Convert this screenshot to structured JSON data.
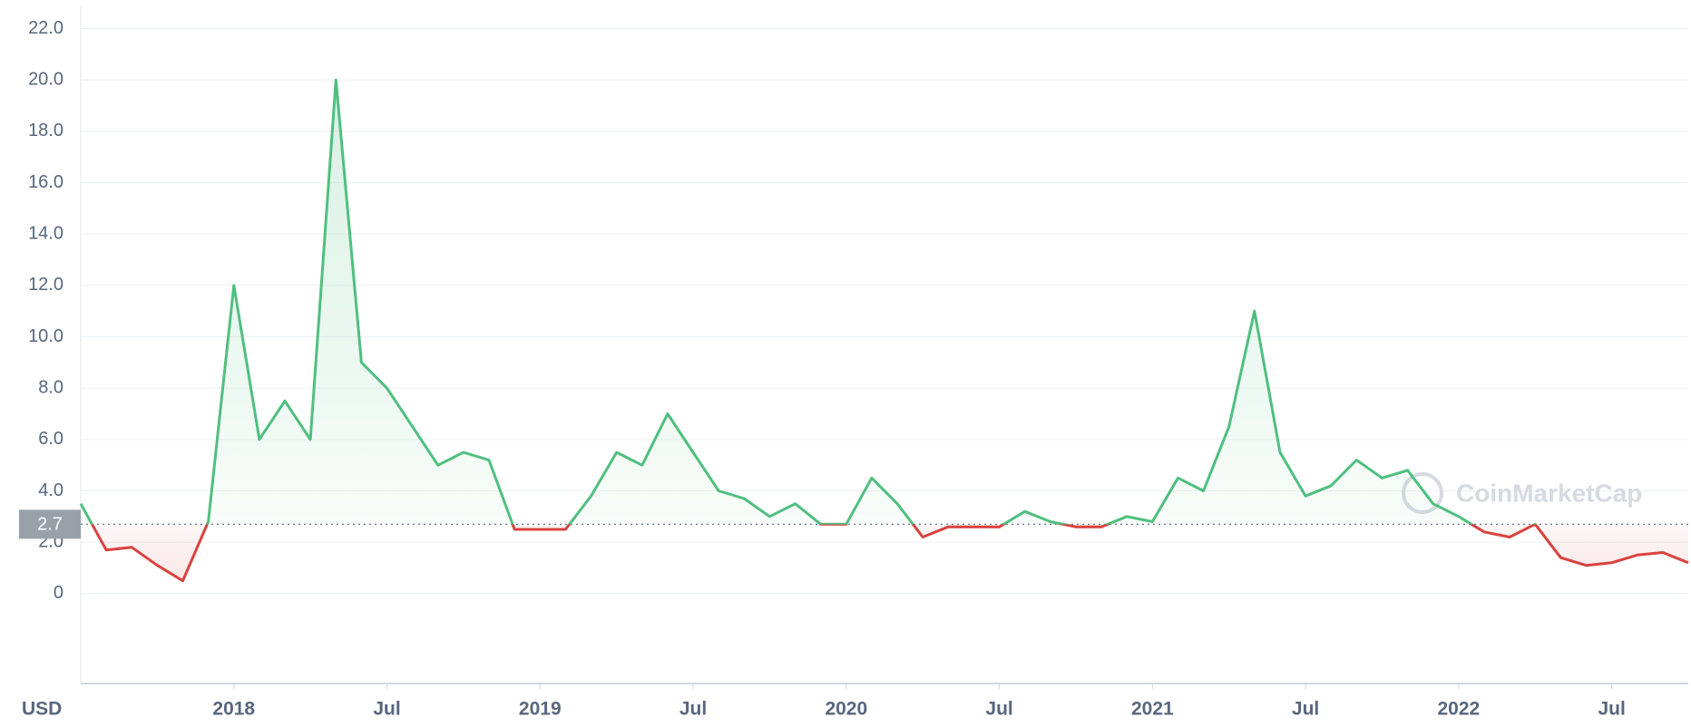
{
  "chart_data": {
    "type": "line",
    "currency": "USD",
    "watermark": "CoinMarketCap",
    "baseline": 2.7,
    "x": [
      "2017-07",
      "2017-08",
      "2017-09",
      "2017-10",
      "2017-11",
      "2017-12",
      "2018-01",
      "2018-02",
      "2018-03",
      "2018-04",
      "2018-05",
      "2018-06",
      "2018-07",
      "2018-08",
      "2018-09",
      "2018-10",
      "2018-11",
      "2018-12",
      "2019-01",
      "2019-02",
      "2019-03",
      "2019-04",
      "2019-05",
      "2019-06",
      "2019-07",
      "2019-08",
      "2019-09",
      "2019-10",
      "2019-11",
      "2019-12",
      "2020-01",
      "2020-02",
      "2020-03",
      "2020-04",
      "2020-05",
      "2020-06",
      "2020-07",
      "2020-08",
      "2020-09",
      "2020-10",
      "2020-11",
      "2020-12",
      "2021-01",
      "2021-02",
      "2021-03",
      "2021-04",
      "2021-05",
      "2021-06",
      "2021-07",
      "2021-08",
      "2021-09",
      "2021-10",
      "2021-11",
      "2021-12",
      "2022-01",
      "2022-02",
      "2022-03",
      "2022-04",
      "2022-05",
      "2022-06",
      "2022-07",
      "2022-08",
      "2022-09",
      "2022-10"
    ],
    "values": [
      3.5,
      1.7,
      1.8,
      1.1,
      0.5,
      2.8,
      12,
      6,
      7.5,
      6,
      20,
      9,
      8,
      6.5,
      5,
      5.5,
      5.2,
      2.5,
      2.5,
      2.5,
      3.8,
      5.5,
      5,
      7,
      5.5,
      4,
      3.7,
      3,
      3.5,
      2.7,
      2.7,
      4.5,
      3.5,
      2.2,
      2.6,
      2.6,
      2.6,
      3.2,
      2.8,
      2.6,
      2.6,
      3,
      2.8,
      4.5,
      4,
      6.5,
      11,
      5.5,
      3.8,
      4.2,
      5.2,
      4.5,
      4.8,
      3.5,
      3,
      2.4,
      2.2,
      2.7,
      1.4,
      1.1,
      1.2,
      1.5,
      1.6,
      1.2
    ],
    "colors": {
      "up": "#4fbf7f",
      "down": "#d9423e"
    },
    "xlim": [
      "2017-07",
      "2022-10"
    ],
    "xticks": [
      {
        "value": "2018-01",
        "label": "2018"
      },
      {
        "value": "2018-07",
        "label": "Jul"
      },
      {
        "value": "2019-01",
        "label": "2019"
      },
      {
        "value": "2019-07",
        "label": "Jul"
      },
      {
        "value": "2020-01",
        "label": "2020"
      },
      {
        "value": "2020-07",
        "label": "Jul"
      },
      {
        "value": "2021-01",
        "label": "2021"
      },
      {
        "value": "2021-07",
        "label": "Jul"
      },
      {
        "value": "2022-01",
        "label": "2022"
      },
      {
        "value": "2022-07",
        "label": "Jul"
      }
    ],
    "ylim": [
      -3.5,
      22.9
    ],
    "yticks": [
      0,
      {
        "value": 2,
        "label": "2.0"
      },
      {
        "value": 4,
        "label": "4.0"
      },
      {
        "value": 6,
        "label": "6.0"
      },
      {
        "value": 8,
        "label": "8.0"
      },
      {
        "value": 10,
        "label": "10.0"
      },
      {
        "value": 12,
        "label": "12.0"
      },
      {
        "value": 14,
        "label": "14.0"
      },
      {
        "value": 16,
        "label": "16.0"
      },
      {
        "value": 18,
        "label": "18.0"
      },
      {
        "value": 20,
        "label": "20.0"
      },
      {
        "value": 22,
        "label": "22.0"
      }
    ],
    "grid": true
  }
}
